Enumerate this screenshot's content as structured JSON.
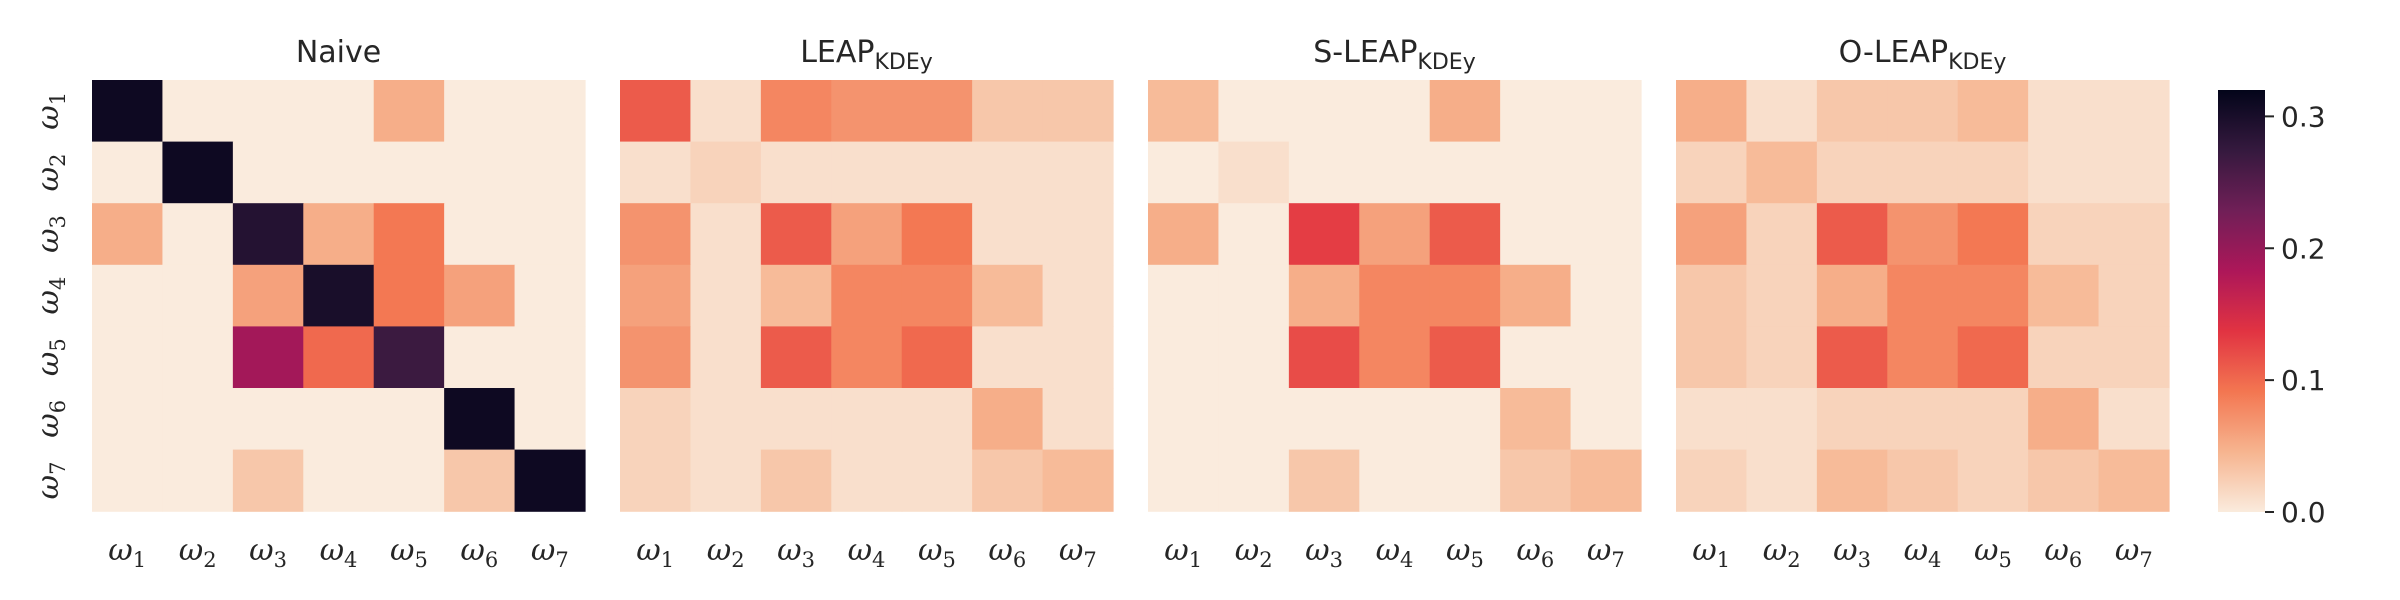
{
  "chart_data": [
    {
      "type": "heatmap",
      "title": "Naive",
      "x_ticks": [
        "ω1",
        "ω2",
        "ω3",
        "ω4",
        "ω5",
        "ω6",
        "ω7"
      ],
      "y_ticks": [
        "ω1",
        "ω2",
        "ω3",
        "ω4",
        "ω5",
        "ω6",
        "ω7"
      ],
      "values": [
        [
          0.31,
          0.0,
          0.0,
          0.0,
          0.05,
          0.0,
          0.0
        ],
        [
          0.0,
          0.31,
          0.0,
          0.0,
          0.0,
          0.0,
          0.0
        ],
        [
          0.05,
          0.0,
          0.29,
          0.05,
          0.09,
          0.0,
          0.0
        ],
        [
          0.0,
          0.0,
          0.06,
          0.3,
          0.09,
          0.06,
          0.0
        ],
        [
          0.0,
          0.0,
          0.19,
          0.1,
          0.27,
          0.0,
          0.0
        ],
        [
          0.0,
          0.0,
          0.0,
          0.0,
          0.0,
          0.31,
          0.0
        ],
        [
          0.0,
          0.0,
          0.03,
          0.0,
          0.0,
          0.03,
          0.31
        ]
      ]
    },
    {
      "type": "heatmap",
      "title": "LEAP",
      "title_sub": "KDEy",
      "x_ticks": [
        "ω1",
        "ω2",
        "ω3",
        "ω4",
        "ω5",
        "ω6",
        "ω7"
      ],
      "y_ticks": [
        "ω1",
        "ω2",
        "ω3",
        "ω4",
        "ω5",
        "ω6",
        "ω7"
      ],
      "values": [
        [
          0.11,
          0.01,
          0.08,
          0.07,
          0.07,
          0.03,
          0.03
        ],
        [
          0.01,
          0.02,
          0.01,
          0.01,
          0.01,
          0.01,
          0.01
        ],
        [
          0.07,
          0.01,
          0.11,
          0.06,
          0.09,
          0.01,
          0.01
        ],
        [
          0.06,
          0.01,
          0.04,
          0.08,
          0.08,
          0.04,
          0.01
        ],
        [
          0.07,
          0.01,
          0.11,
          0.08,
          0.1,
          0.01,
          0.01
        ],
        [
          0.02,
          0.01,
          0.01,
          0.01,
          0.01,
          0.05,
          0.01
        ],
        [
          0.02,
          0.01,
          0.03,
          0.01,
          0.01,
          0.03,
          0.04
        ]
      ]
    },
    {
      "type": "heatmap",
      "title": "S-LEAP",
      "title_sub": "KDEy",
      "x_ticks": [
        "ω1",
        "ω2",
        "ω3",
        "ω4",
        "ω5",
        "ω6",
        "ω7"
      ],
      "y_ticks": [
        "ω1",
        "ω2",
        "ω3",
        "ω4",
        "ω5",
        "ω6",
        "ω7"
      ],
      "values": [
        [
          0.04,
          0.0,
          0.0,
          0.0,
          0.05,
          0.0,
          0.0
        ],
        [
          0.0,
          0.01,
          0.0,
          0.0,
          0.0,
          0.0,
          0.0
        ],
        [
          0.05,
          0.0,
          0.13,
          0.06,
          0.11,
          0.0,
          0.0
        ],
        [
          0.0,
          0.0,
          0.05,
          0.08,
          0.08,
          0.05,
          0.0
        ],
        [
          0.0,
          0.0,
          0.12,
          0.08,
          0.11,
          0.0,
          0.0
        ],
        [
          0.0,
          0.0,
          0.0,
          0.0,
          0.0,
          0.04,
          0.0
        ],
        [
          0.0,
          0.0,
          0.03,
          0.0,
          0.0,
          0.03,
          0.04
        ]
      ]
    },
    {
      "type": "heatmap",
      "title": "O-LEAP",
      "title_sub": "KDEy",
      "x_ticks": [
        "ω1",
        "ω2",
        "ω3",
        "ω4",
        "ω5",
        "ω6",
        "ω7"
      ],
      "y_ticks": [
        "ω1",
        "ω2",
        "ω3",
        "ω4",
        "ω5",
        "ω6",
        "ω7"
      ],
      "values": [
        [
          0.05,
          0.01,
          0.03,
          0.03,
          0.04,
          0.01,
          0.01
        ],
        [
          0.02,
          0.04,
          0.02,
          0.02,
          0.02,
          0.01,
          0.01
        ],
        [
          0.06,
          0.02,
          0.11,
          0.07,
          0.09,
          0.02,
          0.02
        ],
        [
          0.03,
          0.02,
          0.05,
          0.08,
          0.08,
          0.04,
          0.02
        ],
        [
          0.03,
          0.02,
          0.11,
          0.08,
          0.1,
          0.02,
          0.02
        ],
        [
          0.01,
          0.01,
          0.02,
          0.02,
          0.02,
          0.05,
          0.01
        ],
        [
          0.02,
          0.01,
          0.04,
          0.03,
          0.02,
          0.03,
          0.04
        ]
      ]
    }
  ],
  "colorbar": {
    "ticks": [
      "0.0",
      "0.1",
      "0.2",
      "0.3"
    ],
    "min": 0,
    "max": 0.32,
    "colormap": "rocket_r",
    "stops": [
      "#faebdd",
      "#f6b48f",
      "#f37651",
      "#e13342",
      "#ad1759",
      "#701f57",
      "#35193e",
      "#03051a"
    ]
  }
}
